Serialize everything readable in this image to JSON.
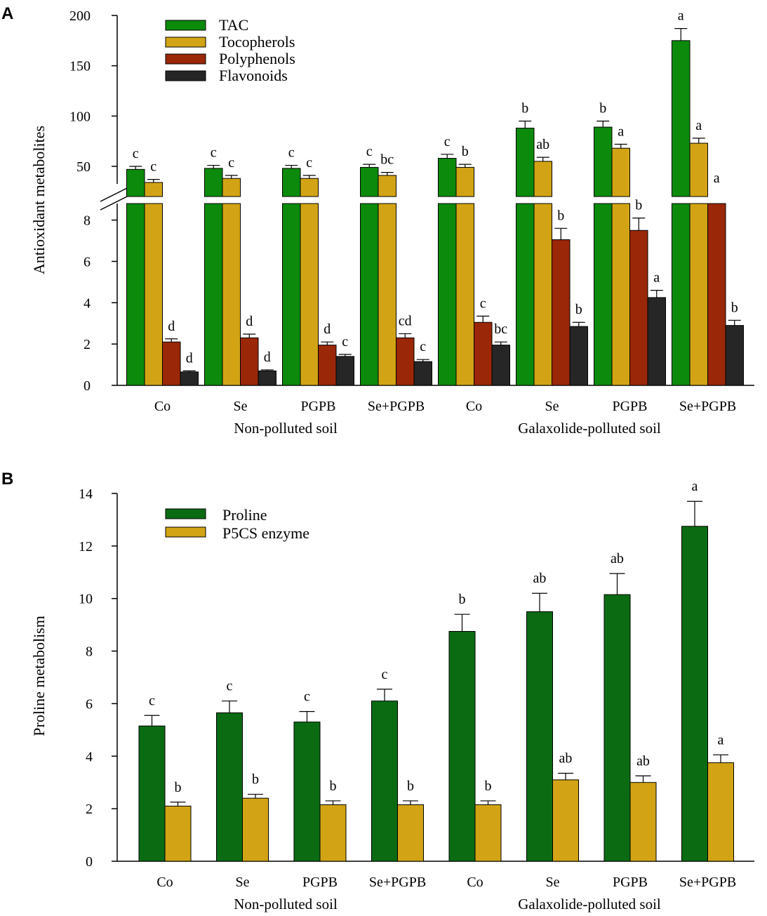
{
  "chart_data": [
    {
      "panel": "A",
      "type": "bar",
      "ylabel": "Antioxidant metabolites",
      "axis_break": true,
      "ylim_lower": [
        0,
        8.8
      ],
      "ylim_upper": [
        20,
        200
      ],
      "yticks_lower": [
        "0",
        "2",
        "4",
        "6",
        "8"
      ],
      "yticks_upper": [
        "50",
        "100",
        "150",
        "200"
      ],
      "categories": [
        "Co",
        "Se",
        "PGPB",
        "Se+PGPB",
        "Co",
        "Se",
        "PGPB",
        "Se+PGPB"
      ],
      "groups": [
        "Non-polluted soil",
        "Galaxolide-polluted soil"
      ],
      "series": [
        {
          "name": "TAC",
          "color": "#0c8a0c",
          "values": [
            47,
            48,
            48,
            49,
            58,
            88,
            89,
            175
          ],
          "errors": [
            3,
            3,
            3,
            3,
            4,
            7,
            6,
            12
          ],
          "letters": [
            "c",
            "c",
            "c",
            "c",
            "c",
            "b",
            "b",
            "a"
          ]
        },
        {
          "name": "Tocopherols",
          "color": "#d2a415",
          "values": [
            34,
            38,
            38,
            41,
            49,
            55,
            68,
            73
          ],
          "errors": [
            3,
            3,
            3,
            3,
            3,
            4,
            4,
            5
          ],
          "letters": [
            "c",
            "c",
            "c",
            "bc",
            "b",
            "ab",
            "a",
            "a"
          ]
        },
        {
          "name": "Polyphenols",
          "color": "#9a2708",
          "values": [
            2.1,
            2.3,
            1.95,
            2.3,
            3.05,
            7.05,
            7.5,
            13
          ],
          "errors": [
            0.15,
            0.18,
            0.15,
            0.2,
            0.3,
            0.55,
            0.6,
            1
          ],
          "letters": [
            "d",
            "d",
            "d",
            "cd",
            "c",
            "b",
            "b",
            "a"
          ]
        },
        {
          "name": "Flavonoids",
          "color": "#262626",
          "values": [
            0.65,
            0.7,
            1.4,
            1.15,
            1.95,
            2.85,
            4.25,
            2.9
          ],
          "errors": [
            0.05,
            0.05,
            0.1,
            0.1,
            0.15,
            0.2,
            0.35,
            0.25
          ],
          "letters": [
            "d",
            "d",
            "c",
            "c",
            "bc",
            "b",
            "a",
            "b"
          ]
        }
      ]
    },
    {
      "panel": "B",
      "type": "bar",
      "ylabel": "Proline metabolism",
      "ylim": [
        0,
        14
      ],
      "yticks": [
        "0",
        "2",
        "4",
        "6",
        "8",
        "10",
        "12",
        "14"
      ],
      "categories": [
        "Co",
        "Se",
        "PGPB",
        "Se+PGPB",
        "Co",
        "Se",
        "PGPB",
        "Se+PGPB"
      ],
      "groups": [
        "Non-polluted soil",
        "Galaxolide-polluted soil"
      ],
      "series": [
        {
          "name": "Proline",
          "color": "#0b6b13",
          "values": [
            5.15,
            5.65,
            5.3,
            6.1,
            8.75,
            9.5,
            10.15,
            12.75
          ],
          "errors": [
            0.4,
            0.45,
            0.4,
            0.45,
            0.65,
            0.7,
            0.8,
            0.95
          ],
          "letters": [
            "c",
            "c",
            "c",
            "c",
            "b",
            "ab",
            "ab",
            "a"
          ]
        },
        {
          "name": "P5CS enzyme",
          "color": "#d2a415",
          "values": [
            2.1,
            2.4,
            2.15,
            2.15,
            2.15,
            3.1,
            3.0,
            3.75
          ],
          "errors": [
            0.15,
            0.15,
            0.15,
            0.15,
            0.15,
            0.25,
            0.25,
            0.3
          ],
          "letters": [
            "b",
            "b",
            "b",
            "b",
            "b",
            "ab",
            "ab",
            "a"
          ]
        }
      ]
    }
  ]
}
